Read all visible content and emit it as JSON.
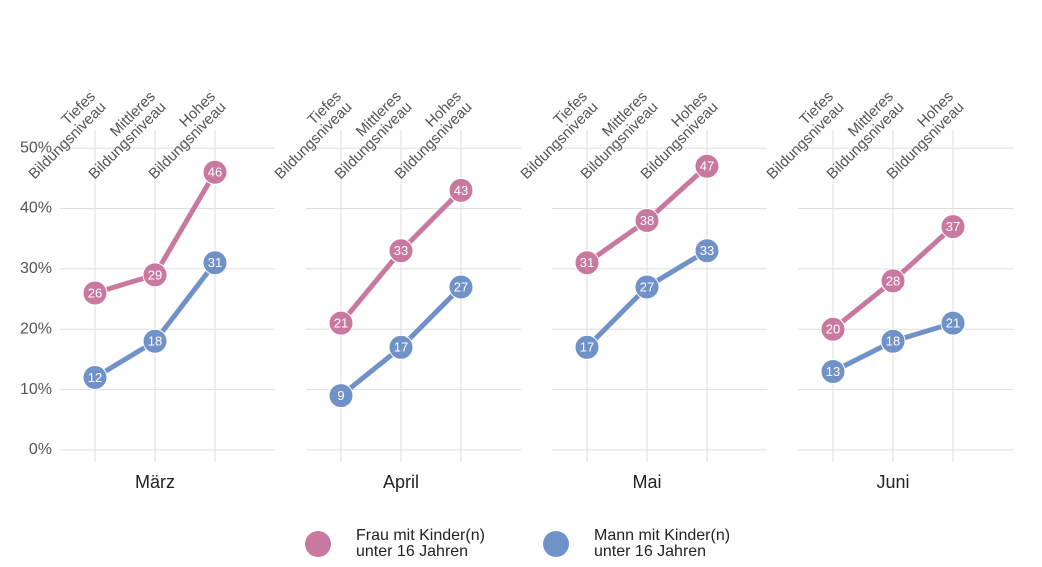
{
  "chart_data": {
    "type": "line",
    "facets": [
      "März",
      "April",
      "Mai",
      "Juni"
    ],
    "categories": [
      "Tiefes\nBildungsniveau",
      "Mittleres\nBildungsniveau",
      "Hohes\nBildungsniveau"
    ],
    "series": [
      {
        "name": "Frau mit Kinder(n)\nunter 16 Jahren",
        "color": "#c9799f",
        "values": [
          [
            26,
            29,
            46
          ],
          [
            21,
            33,
            43
          ],
          [
            31,
            38,
            47
          ],
          [
            20,
            28,
            37
          ]
        ]
      },
      {
        "name": "Mann mit Kinder(n)\nunter 16 Jahren",
        "color": "#7192c8",
        "values": [
          [
            12,
            18,
            31
          ],
          [
            9,
            17,
            27
          ],
          [
            17,
            27,
            33
          ],
          [
            13,
            18,
            21
          ]
        ]
      }
    ],
    "ylim": [
      -2,
      53
    ],
    "yticks": [
      {
        "value": 0,
        "label": "0%"
      },
      {
        "value": 10,
        "label": "10%"
      },
      {
        "value": 20,
        "label": "20%"
      },
      {
        "value": 30,
        "label": "30%"
      },
      {
        "value": 40,
        "label": "40%"
      },
      {
        "value": 50,
        "label": "50%"
      }
    ],
    "grid": true
  }
}
